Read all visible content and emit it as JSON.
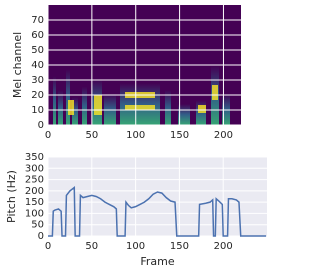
{
  "chart_data": [
    {
      "type": "image",
      "ylabel": "Mel channel",
      "xlim": [
        0,
        220
      ],
      "ylim": [
        0,
        80
      ],
      "xticks": [
        0,
        50,
        100,
        150,
        200
      ],
      "yticks": [
        0,
        10,
        20,
        30,
        40,
        50,
        60,
        70
      ],
      "grid": true
    },
    {
      "type": "line",
      "xlabel": "Frame",
      "ylabel": "Pitch (Hz)",
      "color": "#4c72b0",
      "xlim": [
        0,
        250
      ],
      "ylim": [
        0,
        350
      ],
      "xticks": [
        0,
        50,
        100,
        150,
        200
      ],
      "yticks": [
        0,
        50,
        100,
        150,
        200,
        250,
        300,
        350
      ],
      "grid": true,
      "x": [
        0,
        5,
        6,
        8,
        12,
        15,
        16,
        20,
        21,
        25,
        30,
        31,
        36,
        37,
        40,
        45,
        50,
        55,
        60,
        65,
        70,
        75,
        78,
        79,
        88,
        89,
        92,
        95,
        100,
        105,
        110,
        115,
        120,
        125,
        130,
        135,
        140,
        145,
        147,
        172,
        173,
        180,
        185,
        188,
        189,
        191,
        192,
        195,
        199,
        200,
        205,
        206,
        210,
        215,
        218,
        220,
        249
      ],
      "values": [
        0,
        0,
        110,
        115,
        120,
        110,
        0,
        0,
        180,
        200,
        215,
        0,
        0,
        180,
        170,
        175,
        180,
        175,
        165,
        150,
        140,
        130,
        120,
        0,
        0,
        150,
        135,
        125,
        130,
        140,
        150,
        165,
        185,
        195,
        190,
        170,
        155,
        150,
        0,
        0,
        140,
        145,
        150,
        160,
        0,
        0,
        165,
        155,
        140,
        0,
        0,
        165,
        165,
        160,
        150,
        0,
        0
      ]
    }
  ]
}
